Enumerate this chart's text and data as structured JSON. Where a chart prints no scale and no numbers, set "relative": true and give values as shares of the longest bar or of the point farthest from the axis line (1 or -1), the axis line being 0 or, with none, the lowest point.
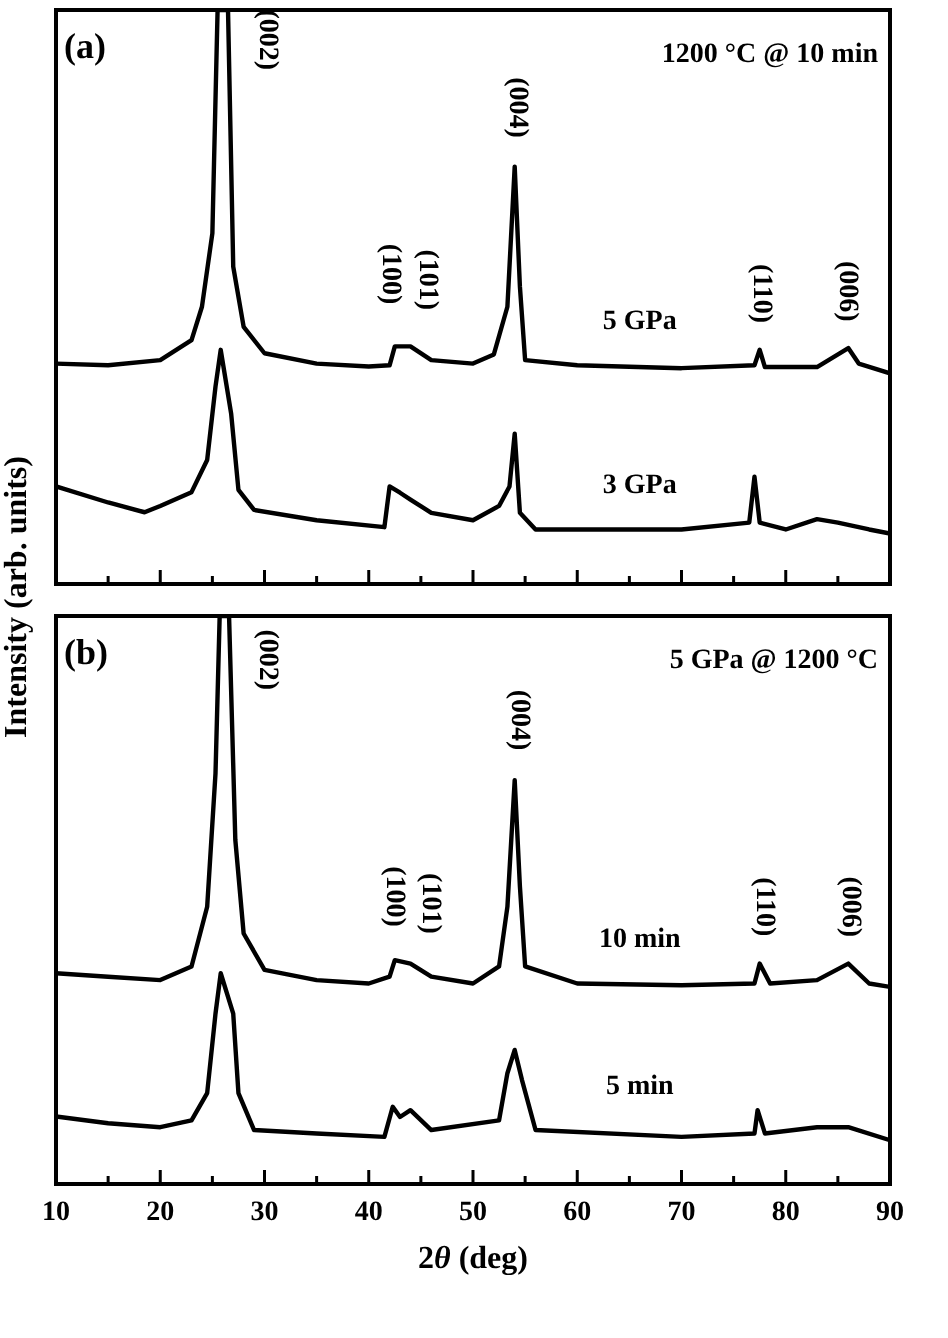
{
  "chart_data": [
    {
      "type": "line",
      "relative": true,
      "title": "(a)",
      "subtitle": "1200 °C @ 10 min",
      "ylabel": "Intensity (arb. units)",
      "tick_labels": false,
      "xlim": [
        10,
        90
      ],
      "xticks": [
        10,
        {
          "value": 15,
          "label": null
        },
        20,
        {
          "value": 25,
          "label": null
        },
        30,
        {
          "value": 35,
          "label": null
        },
        40,
        {
          "value": 45,
          "label": null
        },
        50,
        {
          "value": 55,
          "label": null
        },
        60,
        {
          "value": 65,
          "label": null
        },
        70,
        {
          "value": 75,
          "label": null
        },
        80,
        {
          "value": 85,
          "label": null
        },
        90
      ],
      "series": [
        {
          "name": "5 GPa",
          "color": "#000000",
          "x": [
            10,
            15,
            20,
            23,
            24,
            25,
            25.5,
            26.5,
            27,
            28,
            30,
            35,
            40,
            42,
            42.5,
            44,
            46,
            50,
            52,
            53.3,
            54,
            54.5,
            55,
            60,
            70,
            77,
            77.5,
            78,
            83,
            86,
            87,
            90
          ],
          "values": [
            0.384,
            0.381,
            0.39,
            0.425,
            0.483,
            0.611,
            1,
            1,
            0.553,
            0.448,
            0.402,
            0.384,
            0.379,
            0.381,
            0.414,
            0.414,
            0.39,
            0.384,
            0.4,
            0.483,
            0.727,
            0.518,
            0.39,
            0.381,
            0.376,
            0.381,
            0.408,
            0.378,
            0.378,
            0.411,
            0.384,
            0.367
          ]
        },
        {
          "name": "3 GPa",
          "color": "#000000",
          "x": [
            10,
            15,
            18.5,
            20,
            23,
            24.5,
            25.3,
            25.8,
            26.8,
            27.5,
            29,
            35,
            41.5,
            42,
            43,
            44,
            46,
            50,
            52.5,
            53.5,
            54,
            54.5,
            56,
            65,
            70,
            76.5,
            77,
            77.5,
            80,
            83,
            85,
            88,
            90
          ],
          "values": [
            0.17,
            0.142,
            0.125,
            0.136,
            0.16,
            0.216,
            0.344,
            0.408,
            0.297,
            0.164,
            0.129,
            0.111,
            0.099,
            0.17,
            0.159,
            0.147,
            0.124,
            0.111,
            0.136,
            0.17,
            0.262,
            0.124,
            0.095,
            0.095,
            0.095,
            0.107,
            0.187,
            0.107,
            0.095,
            0.113,
            0.107,
            0.095,
            0.088
          ]
        }
      ],
      "annotations": [
        "(002)",
        "(100)",
        "(101)",
        "(004)",
        "(110)",
        "(006)"
      ]
    },
    {
      "type": "line",
      "relative": true,
      "title": "(b)",
      "subtitle": "5 GPa @ 1200 °C",
      "xlabel": "2θ (deg)",
      "tick_labels": "x",
      "xlim": [
        10,
        90
      ],
      "xticks": [
        10,
        {
          "value": 15,
          "label": null
        },
        20,
        {
          "value": 25,
          "label": null
        },
        30,
        {
          "value": 35,
          "label": null
        },
        40,
        {
          "value": 45,
          "label": null
        },
        50,
        {
          "value": 55,
          "label": null
        },
        60,
        {
          "value": 65,
          "label": null
        },
        70,
        {
          "value": 75,
          "label": null
        },
        80,
        {
          "value": 85,
          "label": null
        },
        90
      ],
      "series": [
        {
          "name": "10 min",
          "color": "#000000",
          "x": [
            10,
            15,
            20,
            23,
            24.5,
            25.3,
            25.7,
            26.6,
            27.2,
            28,
            30,
            35,
            40,
            42,
            42.5,
            44,
            46,
            50,
            52.5,
            53.3,
            54,
            54.5,
            55,
            60,
            70,
            77,
            77.5,
            78.5,
            83,
            86,
            88,
            90
          ],
          "values": [
            0.371,
            0.365,
            0.359,
            0.383,
            0.488,
            0.723,
            1,
            1,
            0.606,
            0.441,
            0.377,
            0.359,
            0.353,
            0.365,
            0.394,
            0.388,
            0.365,
            0.353,
            0.383,
            0.488,
            0.711,
            0.524,
            0.383,
            0.353,
            0.35,
            0.353,
            0.388,
            0.353,
            0.359,
            0.388,
            0.353,
            0.347
          ]
        },
        {
          "name": "5 min",
          "color": "#000000",
          "x": [
            10,
            15,
            20,
            23,
            24.5,
            25.3,
            25.8,
            27,
            27.5,
            29,
            35,
            41.5,
            42.3,
            43,
            44,
            46,
            52.5,
            53.3,
            54,
            54.7,
            56,
            70,
            77,
            77.3,
            78,
            83,
            86,
            90
          ],
          "values": [
            0.119,
            0.107,
            0.1,
            0.112,
            0.16,
            0.3,
            0.371,
            0.3,
            0.16,
            0.095,
            0.089,
            0.083,
            0.136,
            0.118,
            0.13,
            0.095,
            0.112,
            0.195,
            0.236,
            0.183,
            0.095,
            0.083,
            0.089,
            0.13,
            0.089,
            0.1,
            0.1,
            0.077
          ]
        }
      ],
      "annotations": [
        "(002)",
        "(100)",
        "(101)",
        "(004)",
        "(110)",
        "(006)"
      ]
    }
  ]
}
